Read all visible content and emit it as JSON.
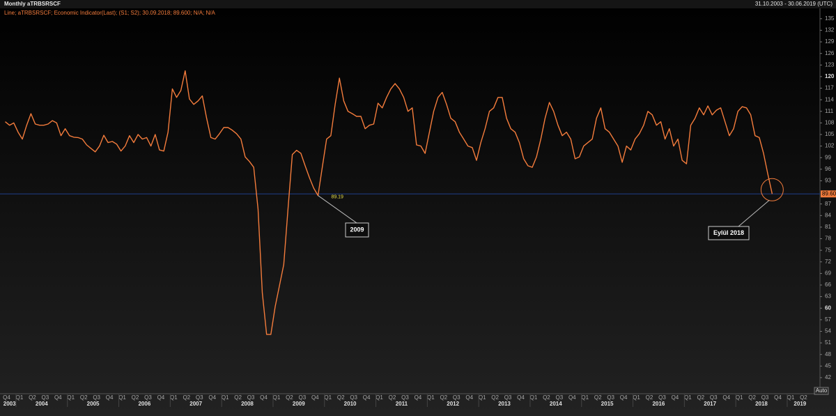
{
  "header": {
    "title": "Monthly aTRBSRSCF",
    "range": "31.10.2003 - 30.06.2019 (UTC)"
  },
  "chart_data": {
    "type": "line",
    "legend": "Line; aTRBSRSCF; Economic Indicator(Last); (S1; S2); 30.09.2018; 89.600; N/A; N/A",
    "x": [
      "2003-10",
      "2003-11",
      "2003-12",
      "2004-01",
      "2004-02",
      "2004-03",
      "2004-04",
      "2004-05",
      "2004-06",
      "2004-07",
      "2004-08",
      "2004-09",
      "2004-10",
      "2004-11",
      "2004-12",
      "2005-01",
      "2005-02",
      "2005-03",
      "2005-04",
      "2005-05",
      "2005-06",
      "2005-07",
      "2005-08",
      "2005-09",
      "2005-10",
      "2005-11",
      "2005-12",
      "2006-01",
      "2006-02",
      "2006-03",
      "2006-04",
      "2006-05",
      "2006-06",
      "2006-07",
      "2006-08",
      "2006-09",
      "2006-10",
      "2006-11",
      "2006-12",
      "2007-01",
      "2007-02",
      "2007-03",
      "2007-04",
      "2007-05",
      "2007-06",
      "2007-07",
      "2007-08",
      "2007-09",
      "2007-10",
      "2007-11",
      "2007-12",
      "2008-01",
      "2008-02",
      "2008-03",
      "2008-04",
      "2008-05",
      "2008-06",
      "2008-07",
      "2008-08",
      "2008-09",
      "2008-10",
      "2008-11",
      "2008-12",
      "2009-01",
      "2009-02",
      "2009-03",
      "2009-04",
      "2009-05",
      "2009-06",
      "2009-07",
      "2009-08",
      "2009-09",
      "2009-10",
      "2009-11",
      "2009-12",
      "2010-01",
      "2010-02",
      "2010-03",
      "2010-04",
      "2010-05",
      "2010-06",
      "2010-07",
      "2010-08",
      "2010-09",
      "2010-10",
      "2010-11",
      "2010-12",
      "2011-01",
      "2011-02",
      "2011-03",
      "2011-04",
      "2011-05",
      "2011-06",
      "2011-07",
      "2011-08",
      "2011-09",
      "2011-10",
      "2011-11",
      "2011-12",
      "2012-01",
      "2012-02",
      "2012-03",
      "2012-04",
      "2012-05",
      "2012-06",
      "2012-07",
      "2012-08",
      "2012-09",
      "2012-10",
      "2012-11",
      "2012-12",
      "2013-01",
      "2013-02",
      "2013-03",
      "2013-04",
      "2013-05",
      "2013-06",
      "2013-07",
      "2013-08",
      "2013-09",
      "2013-10",
      "2013-11",
      "2013-12",
      "2014-01",
      "2014-02",
      "2014-03",
      "2014-04",
      "2014-05",
      "2014-06",
      "2014-07",
      "2014-08",
      "2014-09",
      "2014-10",
      "2014-11",
      "2014-12",
      "2015-01",
      "2015-02",
      "2015-03",
      "2015-04",
      "2015-05",
      "2015-06",
      "2015-07",
      "2015-08",
      "2015-09",
      "2015-10",
      "2015-11",
      "2015-12",
      "2016-01",
      "2016-02",
      "2016-03",
      "2016-04",
      "2016-05",
      "2016-06",
      "2016-07",
      "2016-08",
      "2016-09",
      "2016-10",
      "2016-11",
      "2016-12",
      "2017-01",
      "2017-02",
      "2017-03",
      "2017-04",
      "2017-05",
      "2017-06",
      "2017-07",
      "2017-08",
      "2017-09",
      "2017-10",
      "2017-11",
      "2017-12",
      "2018-01",
      "2018-02",
      "2018-03",
      "2018-04",
      "2018-05",
      "2018-06",
      "2018-07",
      "2018-08",
      "2018-09"
    ],
    "series": [
      {
        "color": "#f47c3c",
        "values": [
          108.3,
          107.4,
          108,
          105.6,
          103.8,
          107.4,
          110.4,
          107.7,
          107.4,
          107.4,
          107.7,
          108.6,
          108,
          104.7,
          106.5,
          104.7,
          104.3,
          104.2,
          103.8,
          102.3,
          101.4,
          100.5,
          102,
          104.8,
          102.9,
          103.2,
          102.5,
          100.7,
          102,
          104.7,
          102.9,
          105,
          103.8,
          104.2,
          102,
          105,
          101,
          100.7,
          105.6,
          116.8,
          114.6,
          116.4,
          121.5,
          114.2,
          112.8,
          113.7,
          115,
          109.2,
          104.2,
          103.8,
          105.2,
          106.8,
          106.8,
          106.1,
          105.2,
          103.8,
          99.2,
          98,
          96.5,
          85.7,
          64,
          53.2,
          53.2,
          60.4,
          65.8,
          71.3,
          85.7,
          99.8,
          100.9,
          100.1,
          96.9,
          93.8,
          91.1,
          89.19,
          96.5,
          103.8,
          104.7,
          112.8,
          119.6,
          113.7,
          111,
          110.4,
          109.7,
          109.7,
          106.5,
          107.4,
          107.7,
          113.1,
          111.9,
          114.6,
          116.8,
          118.2,
          116.8,
          114.6,
          111,
          111.9,
          102.3,
          102,
          100.1,
          105.6,
          111,
          114.6,
          115.9,
          112.8,
          109.2,
          108.3,
          105.6,
          103.8,
          102,
          101.6,
          98.3,
          102.9,
          106.5,
          111,
          111.9,
          114.6,
          114.6,
          109.2,
          106.5,
          105.6,
          102.9,
          98.7,
          96.9,
          96.5,
          99.2,
          103.8,
          109.2,
          113.3,
          111,
          107.4,
          104.7,
          105.6,
          103.8,
          98.7,
          99.2,
          102,
          102.9,
          103.8,
          109.2,
          111.9,
          106.5,
          105.6,
          103.8,
          102,
          97.8,
          102,
          101,
          103.8,
          105.2,
          107.4,
          111,
          110.1,
          107.4,
          108.3,
          103.8,
          106.5,
          102,
          103.8,
          98.3,
          97.4,
          107.4,
          109.2,
          111.9,
          110.1,
          112.4,
          110.1,
          111.3,
          111.9,
          108.3,
          104.7,
          106.5,
          111,
          112.2,
          111.9,
          110.1,
          104.7,
          104.2,
          100.1,
          94.7,
          89.6
        ]
      }
    ],
    "ylim": [
      38.2,
      138.4
    ],
    "yticks": [
      42,
      45,
      48,
      51,
      54,
      57,
      60,
      63,
      66,
      69,
      72,
      75,
      78,
      81,
      84,
      87,
      93,
      96,
      99,
      102,
      105,
      108,
      111,
      114,
      117,
      120,
      123,
      126,
      129,
      132,
      135
    ],
    "x_quarter_labels": [
      "Q4",
      "Q1",
      "Q2",
      "Q3",
      "Q4",
      "Q1",
      "Q2",
      "Q3",
      "Q4",
      "Q1",
      "Q2",
      "Q3",
      "Q4",
      "Q1",
      "Q2",
      "Q3",
      "Q4",
      "Q1",
      "Q2",
      "Q3",
      "Q4",
      "Q1",
      "Q2",
      "Q3",
      "Q4",
      "Q1",
      "Q2",
      "Q3",
      "Q4",
      "Q1",
      "Q2",
      "Q3",
      "Q4",
      "Q1",
      "Q2",
      "Q3",
      "Q4",
      "Q1",
      "Q2",
      "Q3",
      "Q4",
      "Q1",
      "Q2",
      "Q3",
      "Q4",
      "Q1",
      "Q2",
      "Q3",
      "Q4",
      "Q1",
      "Q2",
      "Q3",
      "Q4",
      "Q1",
      "Q2",
      "Q3",
      "Q4",
      "Q1",
      "Q2",
      "Q3",
      "Q4",
      "Q1",
      "Q2"
    ],
    "x_year_labels": [
      "2003",
      "2004",
      "2005",
      "2006",
      "2007",
      "2008",
      "2009",
      "2010",
      "2011",
      "2012",
      "2013",
      "2014",
      "2015",
      "2016",
      "2017",
      "2018",
      "2019"
    ],
    "annotations": [
      "2009",
      "Eylül 2018",
      "89.19",
      "89.600"
    ],
    "auto_button": "Auto"
  }
}
